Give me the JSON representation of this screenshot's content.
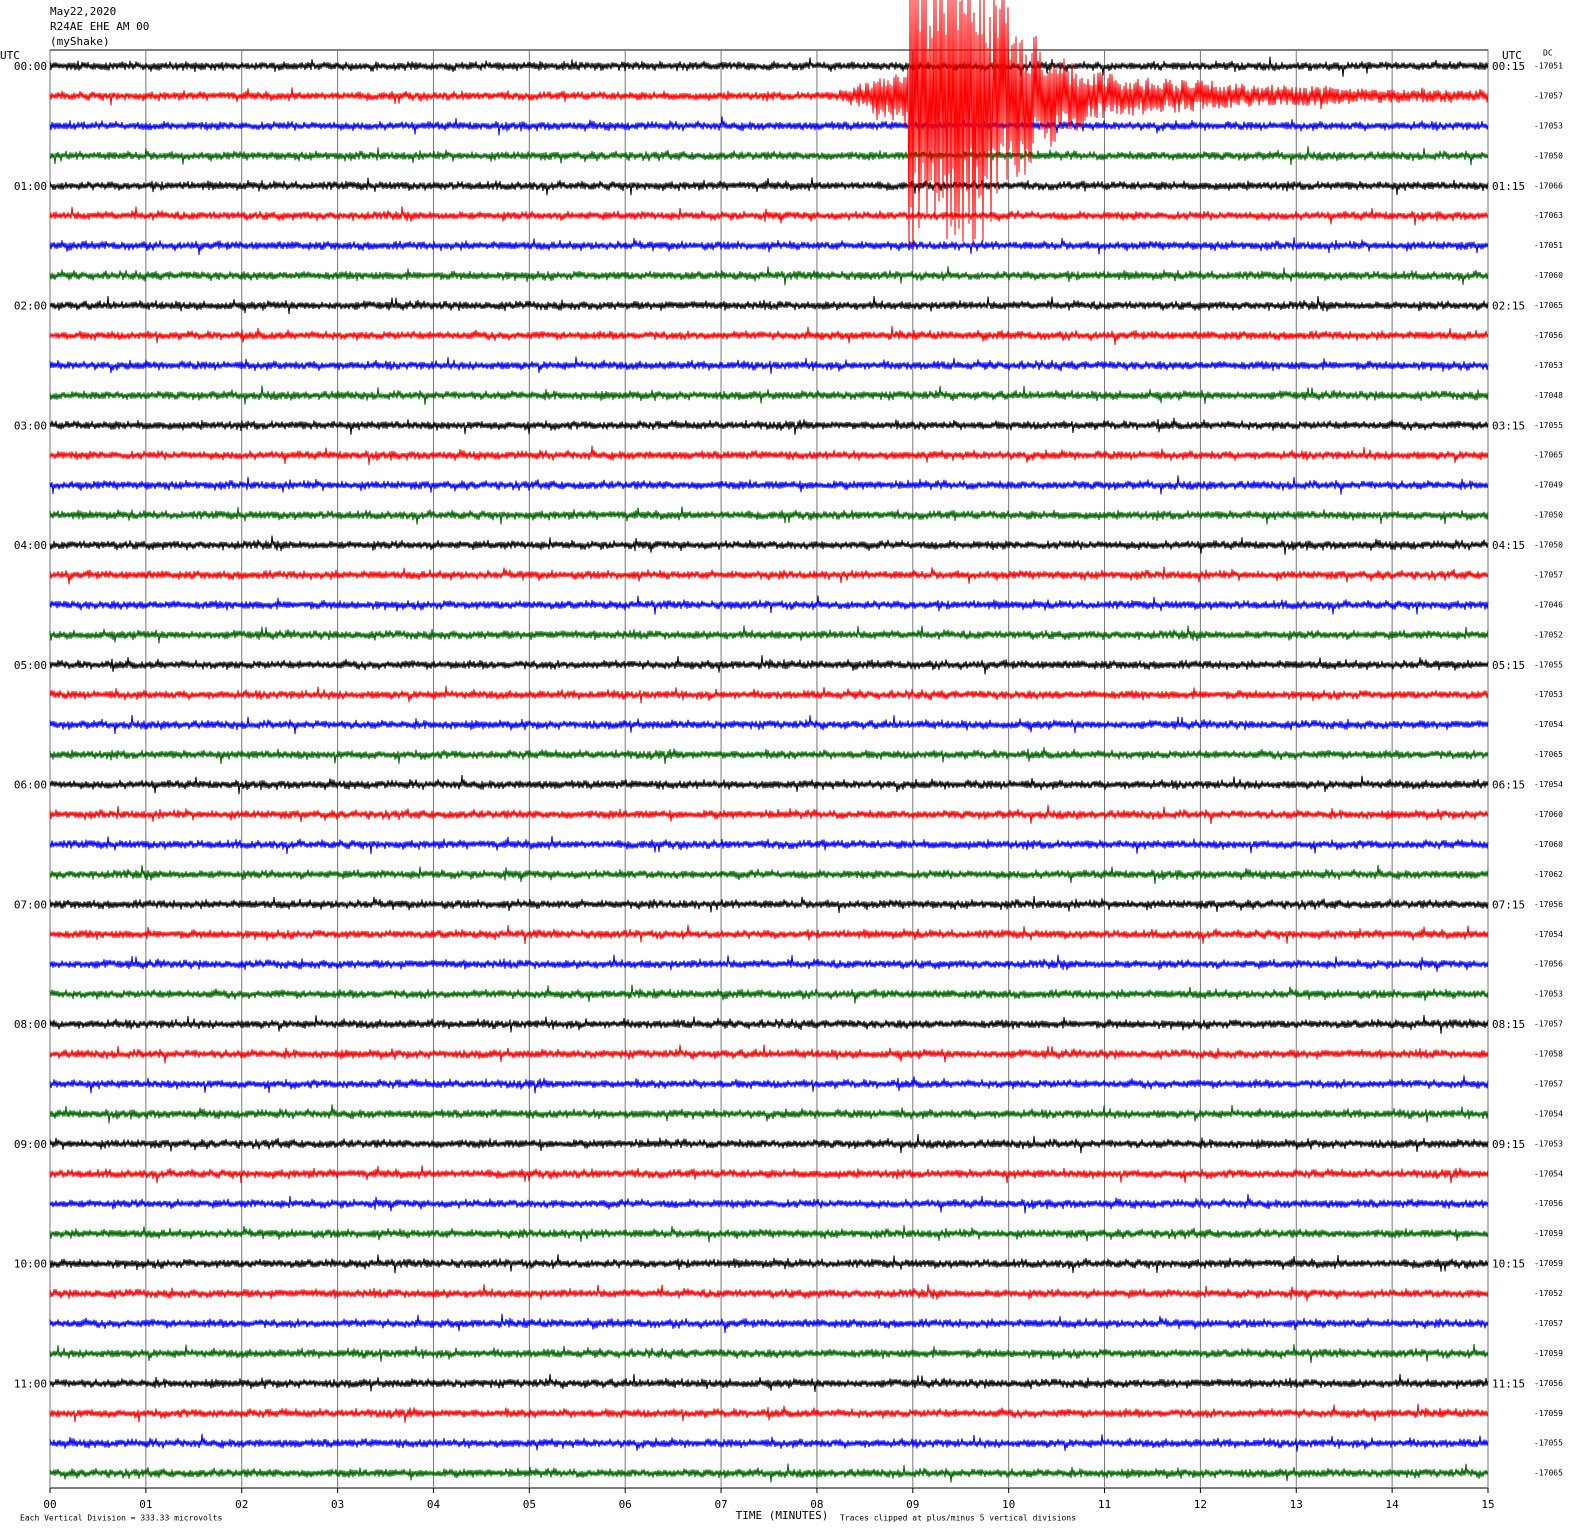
{
  "header": {
    "date": "May22,2020",
    "station": "R24AE EHE AM 00",
    "network": "(myShake)"
  },
  "left_axis_label": "UTC",
  "right_axis_label": "UTC",
  "dc_label": "DC",
  "trace_colors": [
    "#000000",
    "#ff0000",
    "#0000ff",
    "#006400"
  ],
  "hour_labels": [
    {
      "left": "00:00",
      "right": "00:15"
    },
    {
      "left": "01:00",
      "right": "01:15"
    },
    {
      "left": "02:00",
      "right": "02:15"
    },
    {
      "left": "03:00",
      "right": "03:15"
    },
    {
      "left": "04:00",
      "right": "04:15"
    },
    {
      "left": "05:00",
      "right": "05:15"
    },
    {
      "left": "06:00",
      "right": "06:15"
    },
    {
      "left": "07:00",
      "right": "07:15"
    },
    {
      "left": "08:00",
      "right": "08:15"
    },
    {
      "left": "09:00",
      "right": "09:15"
    },
    {
      "left": "10:00",
      "right": "10:15"
    },
    {
      "left": "11:00",
      "right": "11:15"
    }
  ],
  "dc_offsets": [
    -17051,
    -17057,
    -17053,
    -17050,
    -17066,
    -17063,
    -17051,
    -17060,
    -17065,
    -17056,
    -17053,
    -17048,
    -17055,
    -17065,
    -17049,
    -17050,
    -17050,
    -17057,
    -17046,
    -17052,
    -17055,
    -17053,
    -17054,
    -17065,
    -17054,
    -17060,
    -17060,
    -17062,
    -17056,
    -17054,
    -17056,
    -17053,
    -17057,
    -17058,
    -17057,
    -17054,
    -17053,
    -17054,
    -17056,
    -17059,
    -17059,
    -17052,
    -17057,
    -17059,
    -17056,
    -17059,
    -17055,
    -17065
  ],
  "x_ticks": [
    "00",
    "01",
    "02",
    "03",
    "04",
    "05",
    "06",
    "07",
    "08",
    "09",
    "10",
    "11",
    "12",
    "13",
    "14",
    "15"
  ],
  "x_axis_title": "TIME (MINUTES)",
  "footer": {
    "scale": "Each Vertical Division =  333.33 microvolts",
    "clip": "Traces clipped at plus/minus 5 vertical divisions"
  }
}
